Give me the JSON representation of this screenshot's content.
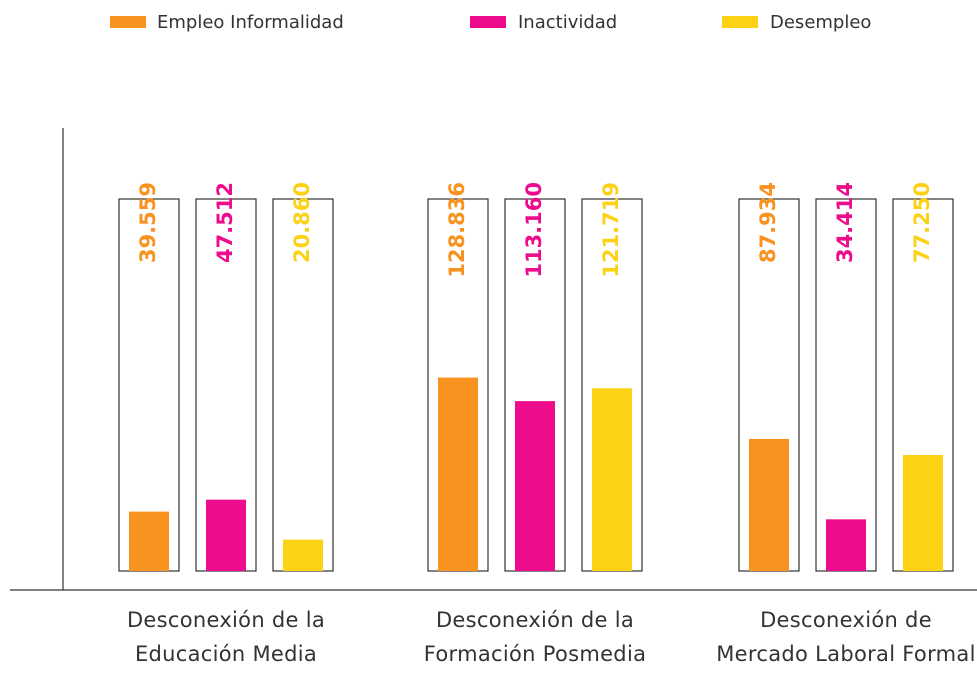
{
  "chart_data": {
    "type": "bar",
    "categories": [
      "Desconexión de la Educación Media",
      "Desconexión de la Formación Posmedia",
      "Desconexión de Mercado Laboral Formal"
    ],
    "series": [
      {
        "name": "Empleo Informalidad",
        "color": "#f7931e",
        "values": [
          39559,
          128836,
          87934
        ],
        "value_labels": [
          "39.559",
          "128.836",
          "87.934"
        ]
      },
      {
        "name": "Inactividad",
        "color": "#ec0c8c",
        "values": [
          47512,
          113160,
          34414
        ],
        "value_labels": [
          "47.512",
          "113.160",
          "34.414"
        ]
      },
      {
        "name": "Desempleo",
        "color": "#fcd116",
        "values": [
          20860,
          121719,
          77250
        ],
        "value_labels": [
          "20.860",
          "121.719",
          "77.250"
        ]
      }
    ],
    "legend": "top"
  }
}
